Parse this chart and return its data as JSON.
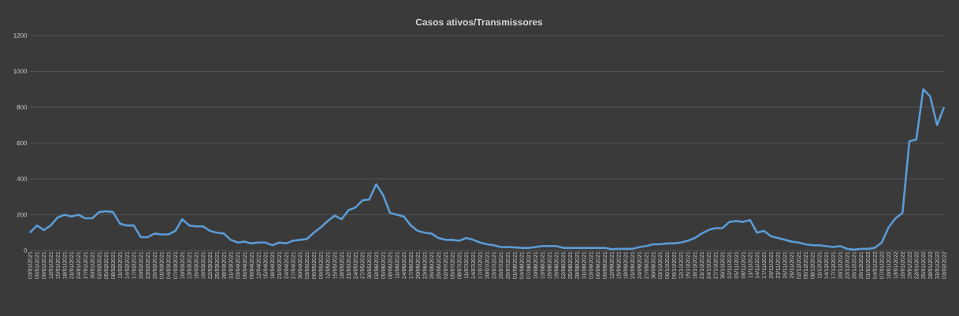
{
  "chart_data": {
    "type": "line",
    "title": "Casos ativos/Transmissores",
    "categories": [
      "03/01/2021",
      "06/01/2021",
      "09/01/2021",
      "12/01/2021",
      "15/01/2021",
      "18/01/2021",
      "21/01/2021",
      "24/01/2021",
      "27/01/2021",
      "30/01/2021",
      "02/02/2021",
      "05/02/2021",
      "08/02/2021",
      "11/02/2021",
      "14/02/2021",
      "17/02/2021",
      "20/02/2021",
      "23/02/2021",
      "26/02/2021",
      "01/03/2021",
      "04/03/2021",
      "07/03/2021",
      "10/03/2021",
      "13/03/2021",
      "16/03/2021",
      "19/03/2021",
      "22/03/2021",
      "25/03/2021",
      "28/03/2021",
      "31/03/2021",
      "03/04/2021",
      "06/04/2021",
      "09/04/2021",
      "12/04/2021",
      "15/04/2021",
      "18/04/2021",
      "21/04/2021",
      "24/04/2021",
      "27/04/2021",
      "30/04/2021",
      "03/05/2021",
      "06/05/2021",
      "09/05/2021",
      "12/05/2021",
      "15/05/2021",
      "18/05/2021",
      "21/05/2021",
      "24/05/2021",
      "27/05/2021",
      "30/05/2021",
      "02/06/2021",
      "05/06/2021",
      "08/06/2021",
      "11/06/2021",
      "14/06/2021",
      "17/06/2021",
      "20/06/2021",
      "23/06/2021",
      "26/06/2021",
      "29/06/2021",
      "02/07/2021",
      "05/07/2021",
      "08/07/2021",
      "11/07/2021",
      "14/07/2021",
      "17/07/2021",
      "20/07/2021",
      "23/07/2021",
      "26/07/2021",
      "29/07/2021",
      "01/08/2021",
      "04/08/2021",
      "07/08/2021",
      "10/08/2021",
      "13/08/2021",
      "16/08/2021",
      "19/08/2021",
      "22/08/2021",
      "25/08/2021",
      "28/08/2021",
      "31/08/2021",
      "03/09/2021",
      "06/09/2021",
      "09/09/2021",
      "12/09/2021",
      "15/09/2021",
      "18/09/2021",
      "21/09/2021",
      "24/09/2021",
      "27/09/2021",
      "30/09/2021",
      "03/10/2021",
      "06/10/2021",
      "09/10/2021",
      "12/10/2021",
      "15/10/2021",
      "18/10/2021",
      "21/10/2021",
      "24/10/2021",
      "27/10/2021",
      "30/10/2021",
      "02/11/2021",
      "05/11/2021",
      "08/11/2021",
      "11/11/2021",
      "14/11/2021",
      "17/11/2021",
      "20/11/2021",
      "23/11/2021",
      "26/11/2021",
      "29/11/2021",
      "02/12/2021",
      "05/12/2021",
      "08/12/2021",
      "11/12/2021",
      "14/12/2021",
      "17/12/2021",
      "20/12/2021",
      "23/12/2021",
      "26/12/2021",
      "29/12/2021",
      "01/01/2022",
      "04/01/2022",
      "07/01/2022",
      "10/01/2022",
      "13/01/2022",
      "16/01/2022",
      "19/01/2022",
      "22/01/2022",
      "25/01/2022",
      "28/01/2022",
      "31/01/2022",
      "03/02/2022"
    ],
    "values": [
      100,
      140,
      115,
      140,
      185,
      200,
      190,
      200,
      180,
      180,
      215,
      220,
      215,
      150,
      140,
      140,
      75,
      75,
      95,
      90,
      90,
      110,
      175,
      140,
      135,
      135,
      110,
      100,
      95,
      60,
      45,
      50,
      40,
      45,
      45,
      30,
      45,
      40,
      55,
      60,
      65,
      100,
      130,
      165,
      195,
      175,
      225,
      240,
      280,
      285,
      370,
      310,
      210,
      200,
      190,
      140,
      110,
      100,
      95,
      70,
      60,
      60,
      55,
      70,
      60,
      45,
      35,
      30,
      20,
      20,
      18,
      15,
      15,
      20,
      25,
      25,
      25,
      15,
      15,
      15,
      15,
      15,
      15,
      15,
      8,
      10,
      10,
      10,
      20,
      25,
      35,
      35,
      40,
      40,
      45,
      55,
      70,
      95,
      115,
      125,
      125,
      160,
      165,
      160,
      170,
      100,
      110,
      80,
      70,
      60,
      50,
      45,
      35,
      30,
      30,
      25,
      20,
      25,
      10,
      5,
      10,
      10,
      15,
      45,
      130,
      180,
      210,
      610,
      620,
      900,
      860,
      700,
      800
    ],
    "color": "#5b9bd5",
    "ylim": [
      0,
      1200
    ],
    "yticks": [
      0,
      200,
      400,
      600,
      800,
      1000,
      1200
    ],
    "grid": "y",
    "marker": "none",
    "line_style": "solid"
  }
}
